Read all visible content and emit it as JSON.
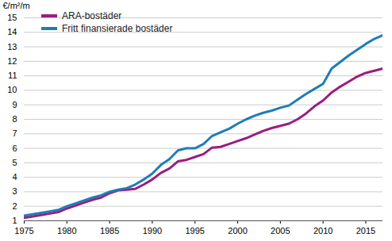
{
  "chart_data": {
    "type": "line",
    "y_label": "€/m²/m",
    "x": [
      1975,
      1976,
      1977,
      1978,
      1979,
      1980,
      1981,
      1982,
      1983,
      1984,
      1985,
      1986,
      1987,
      1988,
      1989,
      1990,
      1991,
      1992,
      1993,
      1994,
      1995,
      1996,
      1997,
      1998,
      1999,
      2000,
      2001,
      2002,
      2003,
      2004,
      2005,
      2006,
      2007,
      2008,
      2009,
      2010,
      2011,
      2012,
      2013,
      2014,
      2015,
      2016,
      2017
    ],
    "series": [
      {
        "name": "ARA-bostäder",
        "color": "#9b1d7d",
        "values": [
          1.2,
          1.3,
          1.4,
          1.5,
          1.6,
          1.85,
          2.05,
          2.25,
          2.45,
          2.6,
          2.9,
          3.1,
          3.15,
          3.2,
          3.5,
          3.85,
          4.3,
          4.6,
          5.1,
          5.2,
          5.4,
          5.6,
          6.05,
          6.1,
          6.3,
          6.5,
          6.7,
          6.95,
          7.2,
          7.4,
          7.55,
          7.7,
          8.0,
          8.4,
          8.9,
          9.3,
          9.85,
          10.25,
          10.6,
          10.95,
          11.2,
          11.35,
          11.5
        ]
      },
      {
        "name": "Fritt finansierade bostäder",
        "color": "#1f7db6",
        "values": [
          1.35,
          1.45,
          1.55,
          1.65,
          1.75,
          2.0,
          2.2,
          2.4,
          2.6,
          2.75,
          3.0,
          3.15,
          3.25,
          3.5,
          3.85,
          4.25,
          4.85,
          5.25,
          5.85,
          6.0,
          6.0,
          6.3,
          6.85,
          7.1,
          7.35,
          7.7,
          8.0,
          8.25,
          8.45,
          8.6,
          8.8,
          8.95,
          9.35,
          9.75,
          10.1,
          10.45,
          11.5,
          11.95,
          12.4,
          12.8,
          13.2,
          13.55,
          13.8
        ]
      }
    ],
    "xlim": [
      1975,
      2017
    ],
    "xticks": [
      1975,
      1980,
      1985,
      1990,
      1995,
      2000,
      2005,
      2010,
      2015
    ],
    "ylim": [
      1,
      15
    ],
    "yticks": [
      1,
      2,
      3,
      4,
      5,
      6,
      7,
      8,
      9,
      10,
      11,
      12,
      13,
      14,
      15
    ],
    "grid": true,
    "legend": "top-left"
  }
}
